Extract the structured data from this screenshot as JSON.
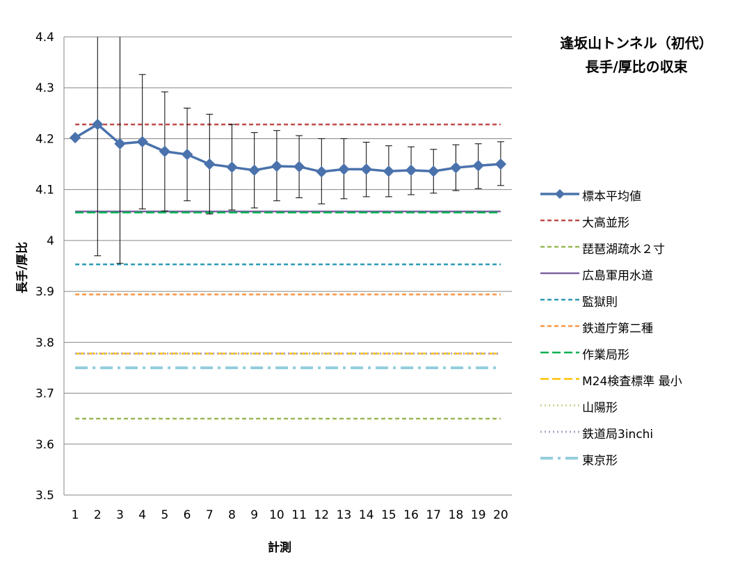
{
  "chart_data": {
    "type": "line",
    "title_line1": "逢坂山トンネル（初代）",
    "title_line2": "長手/厚比の収束",
    "xlabel": "計測",
    "ylabel": "長手/厚比",
    "categories": [
      "1",
      "2",
      "3",
      "4",
      "5",
      "6",
      "7",
      "8",
      "9",
      "10",
      "11",
      "12",
      "13",
      "14",
      "15",
      "16",
      "17",
      "18",
      "19",
      "20"
    ],
    "y_ticks": [
      "4.4",
      "4.3",
      "4.2",
      "4.1",
      "4",
      "3.9",
      "3.8",
      "3.7",
      "3.6",
      "3.5"
    ],
    "ylim": [
      3.5,
      4.4
    ],
    "grid": true,
    "legend_position": "right",
    "mean_series": {
      "name": "標本平均値",
      "color": "#4A72AC",
      "values": [
        4.202,
        4.228,
        4.19,
        4.194,
        4.175,
        4.169,
        4.15,
        4.144,
        4.138,
        4.146,
        4.145,
        4.135,
        4.14,
        4.14,
        4.136,
        4.138,
        4.136,
        4.143,
        4.147,
        4.15
      ],
      "error_low": [
        null,
        3.97,
        3.955,
        4.062,
        4.058,
        4.078,
        4.052,
        4.06,
        4.064,
        4.078,
        4.084,
        4.072,
        4.082,
        4.086,
        4.086,
        4.09,
        4.093,
        4.098,
        4.102,
        4.108
      ],
      "error_high": [
        null,
        4.4,
        4.4,
        4.326,
        4.292,
        4.26,
        4.248,
        4.228,
        4.212,
        4.216,
        4.206,
        4.2,
        4.2,
        4.193,
        4.186,
        4.184,
        4.179,
        4.188,
        4.19,
        4.194
      ]
    },
    "reference_lines": [
      {
        "name": "大高並形",
        "value": 4.228,
        "color": "#BE4B48",
        "style": "dash"
      },
      {
        "name": "琵琶湖疏水２寸",
        "value": 3.65,
        "color": "#98B954",
        "style": "dash"
      },
      {
        "name": "広島軍用水道",
        "value": 4.057,
        "color": "#7D60A0",
        "style": "solid"
      },
      {
        "name": "監獄則",
        "value": 3.953,
        "color": "#2D9AB5",
        "style": "dash"
      },
      {
        "name": "鉄道庁第二種",
        "value": 3.894,
        "color": "#F79646",
        "style": "dash"
      },
      {
        "name": "作業局形",
        "value": 4.055,
        "color": "#00B050",
        "style": "longdash"
      },
      {
        "name": "M24検査標準 最小",
        "value": 3.778,
        "color": "#FFC000",
        "style": "longdash"
      },
      {
        "name": "山陽形",
        "value": 3.778,
        "color": "#C4D79B",
        "style": "dot"
      },
      {
        "name": "鉄道局3inchi",
        "value": 3.778,
        "color": "#B3A2C7",
        "style": "dot"
      },
      {
        "name": "東京形",
        "value": 3.75,
        "color": "#93CDDD",
        "style": "dashdot"
      }
    ]
  }
}
